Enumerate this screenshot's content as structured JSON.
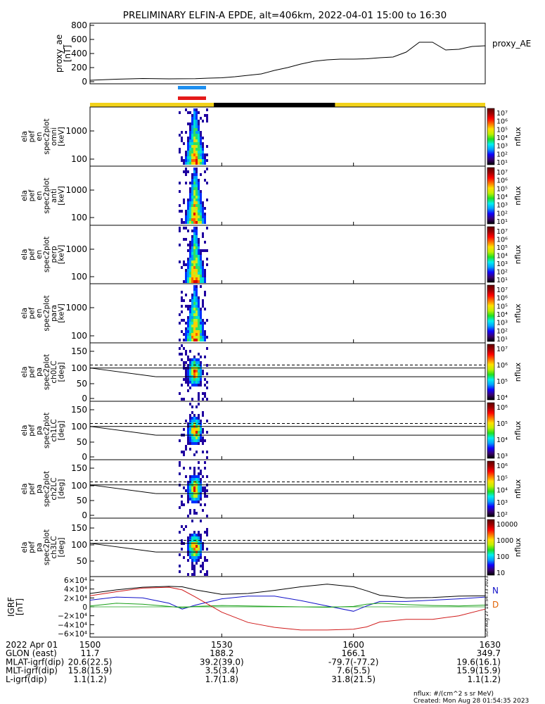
{
  "title": "PRELIMINARY ELFIN-A EPDE, alt=406km, 2022-04-01 15:00 to 16:30",
  "colors": {
    "axis": "#000000",
    "bar_blue": "#1e8ff0",
    "bar_red": "#e41a1a",
    "day": "#f2d21a",
    "night": "#000000",
    "igrf_x": "#1010c8",
    "igrf_y": "#1aa01a",
    "igrf_z": "#d01a1a",
    "igrf_t": "#000000"
  },
  "chart_data": [
    {
      "type": "line",
      "id": "proxy_ae",
      "ylabel": [
        "proxy_ae",
        "[nT]"
      ],
      "ylim": [
        0,
        800
      ],
      "yticks": [
        "800",
        "600",
        "400",
        "200",
        "0"
      ],
      "legend": "proxy_AE",
      "x": [
        15.0,
        15.1,
        15.2,
        15.3,
        15.4,
        15.45,
        15.5,
        15.55,
        15.6,
        15.65,
        15.7,
        15.75,
        15.8,
        15.85,
        15.9,
        15.95,
        16.0,
        16.05,
        16.1,
        16.15,
        16.2,
        16.25,
        16.3,
        16.35,
        16.4,
        16.45,
        16.5
      ],
      "y": [
        20,
        35,
        45,
        40,
        42,
        50,
        55,
        70,
        90,
        110,
        160,
        200,
        250,
        290,
        310,
        320,
        320,
        325,
        340,
        350,
        420,
        560,
        560,
        450,
        460,
        500,
        510
      ]
    },
    {
      "type": "heatmap",
      "id": "en_omni",
      "ylabel": [
        "ela",
        "pef",
        "en",
        "spec2plot",
        "omni",
        "[keV]"
      ],
      "yticks": [
        "1000",
        "100"
      ],
      "cbar_ticks": [
        "10⁷",
        "10⁶",
        "10⁵",
        "10⁴",
        "10³",
        "10²",
        "10¹"
      ],
      "cbar_label": "nflux"
    },
    {
      "type": "heatmap",
      "id": "en_anti",
      "ylabel": [
        "ela",
        "pef",
        "en",
        "spec2plot",
        "anti",
        "[keV]"
      ],
      "yticks": [
        "1000",
        "100"
      ],
      "cbar_ticks": [
        "10⁷",
        "10⁶",
        "10⁵",
        "10⁴",
        "10³",
        "10²",
        "10¹"
      ],
      "cbar_label": "nflux"
    },
    {
      "type": "heatmap",
      "id": "en_perp",
      "ylabel": [
        "ela",
        "pef",
        "en",
        "spec2plot",
        "perp",
        "[keV]"
      ],
      "yticks": [
        "1000",
        "100"
      ],
      "cbar_ticks": [
        "10⁷",
        "10⁶",
        "10⁵",
        "10⁴",
        "10³",
        "10²",
        "10¹"
      ],
      "cbar_label": "nflux"
    },
    {
      "type": "heatmap",
      "id": "en_para",
      "ylabel": [
        "ela",
        "pef",
        "en",
        "spec2plot",
        "para",
        "[keV]"
      ],
      "yticks": [
        "1000",
        "100"
      ],
      "cbar_ticks": [
        "10⁷",
        "10⁶",
        "10⁵",
        "10⁴",
        "10³",
        "10²",
        "10¹"
      ],
      "cbar_label": "nflux"
    },
    {
      "type": "heatmap",
      "id": "pa_ch0",
      "ylabel": [
        "ela",
        "pef",
        "pa",
        "spec2plot",
        "ch0LC",
        "[deg]"
      ],
      "yticks": [
        "150",
        "100",
        "50",
        "0"
      ],
      "cbar_ticks": [
        "10⁷",
        "10⁶",
        "10⁵",
        "10⁴"
      ],
      "cbar_label": "nflux"
    },
    {
      "type": "heatmap",
      "id": "pa_ch1",
      "ylabel": [
        "ela",
        "pef",
        "pa",
        "spec2plot",
        "ch1LC",
        "[deg]"
      ],
      "yticks": [
        "150",
        "100",
        "50",
        "0"
      ],
      "cbar_ticks": [
        "10⁶",
        "10⁵",
        "10⁴",
        "10³"
      ],
      "cbar_label": "nflux"
    },
    {
      "type": "heatmap",
      "id": "pa_ch2",
      "ylabel": [
        "ela",
        "pef",
        "pa",
        "spec2plot",
        "ch2LC",
        "[deg]"
      ],
      "yticks": [
        "150",
        "100",
        "50",
        "0"
      ],
      "cbar_ticks": [
        "10⁶",
        "10⁵",
        "10⁴",
        "10³",
        "10²"
      ],
      "cbar_label": "nflux"
    },
    {
      "type": "heatmap",
      "id": "pa_ch3",
      "ylabel": [
        "ela",
        "pef",
        "pa",
        "spec2plot",
        "ch3LC",
        "[deg]"
      ],
      "yticks": [
        "150",
        "100",
        "50"
      ],
      "cbar_ticks": [
        "10000",
        "1000",
        "100",
        "10"
      ],
      "cbar_label": "nflux"
    },
    {
      "type": "line",
      "id": "igrf",
      "ylabel": [
        "IGRF",
        "[nT]"
      ],
      "ylim": [
        -60000,
        60000
      ],
      "yticks": [
        "6×10⁴",
        "4×10⁴",
        "2×10⁴",
        "0",
        "−2×10⁴",
        "−4×10⁴",
        "−6×10⁴"
      ],
      "legend_n": "N",
      "legend_d": "D",
      "side_text": "Sun Aug 27 18:54:33 2023",
      "x": [
        15.0,
        15.1,
        15.2,
        15.3,
        15.35,
        15.4,
        15.5,
        15.6,
        15.7,
        15.8,
        15.9,
        16.0,
        16.05,
        16.1,
        16.2,
        16.3,
        16.4,
        16.5
      ],
      "series": [
        {
          "values": [
            30000,
            38000,
            44000,
            46000,
            45000,
            38000,
            28000,
            30000,
            37000,
            45000,
            51000,
            45000,
            36000,
            26000,
            20000,
            21000,
            24000,
            25000
          ]
        },
        {
          "values": [
            15000,
            22000,
            20000,
            8000,
            -5000,
            4000,
            18000,
            24000,
            24000,
            14000,
            2000,
            -10000,
            2000,
            12000,
            12000,
            15000,
            18000,
            22000
          ]
        },
        {
          "values": [
            2000,
            8000,
            6000,
            1000,
            -2000,
            1000,
            3000,
            2000,
            1000,
            0,
            -1000,
            1000,
            6000,
            8000,
            5000,
            3000,
            2000,
            4000
          ]
        },
        {
          "values": [
            25000,
            34000,
            42000,
            44000,
            38000,
            22000,
            -12000,
            -35000,
            -46000,
            -52000,
            -52000,
            -50000,
            -45000,
            -34000,
            -28000,
            -28000,
            -20000,
            -5000
          ]
        }
      ]
    }
  ],
  "time_axis": {
    "rows": [
      {
        "label": "2022 Apr 01",
        "values": [
          "1500",
          "1530",
          "1600",
          "1630"
        ]
      },
      {
        "label": "GLON (east)",
        "values": [
          "11.7",
          "188.2",
          "166.1",
          "349.7"
        ]
      },
      {
        "label": "MLAT-igrf(dip)",
        "values": [
          "20.6(22.5)",
          "39.2(39.0)",
          "-79.7(-77.2)",
          "19.6(16.1)"
        ]
      },
      {
        "label": "MLT-igrf(dip)",
        "values": [
          "15.8(15.9)",
          "3.5(3.4)",
          "7.6(5.5)",
          "15.9(15.9)"
        ]
      },
      {
        "label": "L-igrf(dip)",
        "values": [
          "1.1(1.2)",
          "1.7(1.8)",
          "31.8(21.5)",
          "1.1(1.2)"
        ]
      }
    ]
  },
  "footer": {
    "units": "nflux: #/(cm^2 s sr MeV)",
    "created": "Created: Mon Aug 28 01:54:35 2023"
  }
}
